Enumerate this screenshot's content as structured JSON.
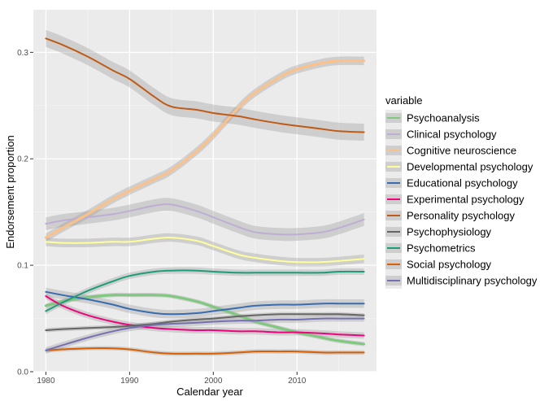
{
  "chart_data": {
    "type": "line",
    "xlabel": "Calendar year",
    "ylabel": "Endorsement proportion",
    "xlim": [
      1978.5,
      2019.5
    ],
    "ylim": [
      0,
      0.34
    ],
    "xticks": [
      1980,
      1990,
      2000,
      2010
    ],
    "yticks": [
      0.0,
      0.1,
      0.2,
      0.3
    ],
    "ytick_labels": [
      "0.0",
      "0.1",
      "0.2",
      "0.3"
    ],
    "grid": true,
    "background": "#ebebeb",
    "legend": {
      "title": "variable",
      "position": "right"
    },
    "x": [
      1980,
      1982,
      1985,
      1988,
      1990,
      1993,
      1995,
      1998,
      2000,
      2003,
      2005,
      2008,
      2010,
      2013,
      2015,
      2018
    ],
    "series": [
      {
        "name": "Psychoanalysis",
        "color": "#7fc97f",
        "values": [
          0.062,
          0.066,
          0.07,
          0.072,
          0.072,
          0.072,
          0.071,
          0.066,
          0.061,
          0.053,
          0.047,
          0.041,
          0.037,
          0.032,
          0.029,
          0.026
        ]
      },
      {
        "name": "Clinical psychology",
        "color": "#beaed4",
        "values": [
          0.139,
          0.142,
          0.145,
          0.148,
          0.151,
          0.156,
          0.157,
          0.151,
          0.145,
          0.136,
          0.131,
          0.129,
          0.129,
          0.131,
          0.135,
          0.143
        ]
      },
      {
        "name": "Cognitive neuroscience",
        "color": "#fdc086",
        "values": [
          0.126,
          0.135,
          0.148,
          0.162,
          0.17,
          0.181,
          0.189,
          0.207,
          0.222,
          0.248,
          0.262,
          0.277,
          0.284,
          0.29,
          0.292,
          0.292
        ]
      },
      {
        "name": "Developmental psychology",
        "color": "#ffff99",
        "values": [
          0.122,
          0.121,
          0.121,
          0.122,
          0.122,
          0.125,
          0.126,
          0.123,
          0.118,
          0.11,
          0.107,
          0.104,
          0.103,
          0.103,
          0.104,
          0.106
        ]
      },
      {
        "name": "Educational psychology",
        "color": "#386cb0",
        "values": [
          0.075,
          0.072,
          0.068,
          0.063,
          0.059,
          0.055,
          0.054,
          0.055,
          0.057,
          0.06,
          0.062,
          0.063,
          0.063,
          0.064,
          0.064,
          0.064
        ]
      },
      {
        "name": "Experimental psychology",
        "color": "#f0027f",
        "values": [
          0.071,
          0.062,
          0.053,
          0.047,
          0.044,
          0.041,
          0.04,
          0.039,
          0.039,
          0.038,
          0.038,
          0.037,
          0.037,
          0.036,
          0.035,
          0.034
        ]
      },
      {
        "name": "Personality psychology",
        "color": "#bf5b17",
        "values": [
          0.313,
          0.307,
          0.296,
          0.283,
          0.275,
          0.258,
          0.249,
          0.246,
          0.243,
          0.24,
          0.237,
          0.233,
          0.231,
          0.228,
          0.226,
          0.225
        ]
      },
      {
        "name": "Psychophysiology",
        "color": "#666666",
        "values": [
          0.039,
          0.04,
          0.041,
          0.042,
          0.043,
          0.045,
          0.047,
          0.049,
          0.05,
          0.052,
          0.053,
          0.054,
          0.054,
          0.054,
          0.054,
          0.053
        ]
      },
      {
        "name": "Psychometrics",
        "color": "#1b9e77",
        "values": [
          0.057,
          0.065,
          0.076,
          0.085,
          0.09,
          0.094,
          0.095,
          0.095,
          0.094,
          0.093,
          0.093,
          0.093,
          0.093,
          0.093,
          0.094,
          0.094
        ]
      },
      {
        "name": "Social psychology",
        "color": "#d95f02",
        "values": [
          0.02,
          0.021,
          0.022,
          0.022,
          0.021,
          0.018,
          0.017,
          0.017,
          0.017,
          0.018,
          0.019,
          0.019,
          0.019,
          0.018,
          0.018,
          0.018
        ]
      },
      {
        "name": "Multidisciplinary psychology",
        "color": "#7570b3",
        "values": [
          0.02,
          0.025,
          0.032,
          0.038,
          0.041,
          0.044,
          0.045,
          0.046,
          0.047,
          0.048,
          0.048,
          0.049,
          0.049,
          0.05,
          0.05,
          0.05
        ]
      }
    ],
    "bands": [
      {
        "series": "Psychoanalysis",
        "halfwidth": 0.002
      },
      {
        "series": "Clinical psychology",
        "halfwidth": 0.006
      },
      {
        "series": "Cognitive neuroscience",
        "halfwidth": 0.004
      },
      {
        "series": "Developmental psychology",
        "halfwidth": 0.004
      },
      {
        "series": "Educational psychology",
        "halfwidth": 0.004
      },
      {
        "series": "Experimental psychology",
        "halfwidth": 0.003
      },
      {
        "series": "Personality psychology",
        "halfwidth": 0.008
      },
      {
        "series": "Psychophysiology",
        "halfwidth": 0.002
      },
      {
        "series": "Psychometrics",
        "halfwidth": 0.003
      },
      {
        "series": "Social psychology",
        "halfwidth": 0.002
      },
      {
        "series": "Multidisciplinary psychology",
        "halfwidth": 0.003
      }
    ]
  }
}
